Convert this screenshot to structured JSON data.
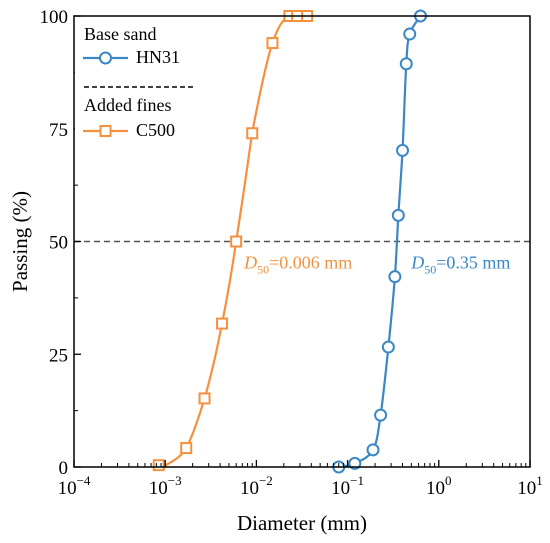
{
  "chart_data": {
    "type": "line",
    "xlabel": "Diameter (mm)",
    "ylabel": "Passing (%)",
    "x_scale": "log",
    "xlim": [
      0.0001,
      10
    ],
    "ylim": [
      0,
      100
    ],
    "x_tick_values": [
      0.0001,
      0.001,
      0.01,
      0.1,
      1,
      10
    ],
    "x_tick_labels": [
      {
        "base": "10",
        "exp": "−4"
      },
      {
        "base": "10",
        "exp": "−3"
      },
      {
        "base": "10",
        "exp": "−2"
      },
      {
        "base": "10",
        "exp": "−1"
      },
      {
        "base": "10",
        "exp": "0"
      },
      {
        "base": "10",
        "exp": "1"
      }
    ],
    "y_ticks": [
      0,
      25,
      50,
      75,
      100
    ],
    "grid": false,
    "legend_position": "top-left",
    "legend_groups": [
      {
        "header": "Base sand",
        "series_index": 0
      },
      {
        "header": "Added fines",
        "series_index": 1
      }
    ],
    "reference_line": {
      "y": 50,
      "style": "dashed",
      "color": "#555555"
    },
    "series": [
      {
        "name": "HN31",
        "color": "#3a87c5",
        "marker": "circle",
        "x": [
          0.08,
          0.12,
          0.19,
          0.23,
          0.28,
          0.33,
          0.36,
          0.4,
          0.44,
          0.48,
          0.63
        ],
        "y": [
          0,
          0.8,
          3.8,
          11.5,
          26.6,
          42.2,
          55.8,
          70.2,
          89.4,
          96.0,
          100
        ],
        "curve_x": [
          0.08,
          0.12,
          0.19,
          0.23,
          0.28,
          0.33,
          0.36,
          0.4,
          0.44,
          0.48,
          0.63
        ],
        "curve_y": [
          0,
          0.8,
          3.8,
          11.5,
          26.6,
          42.2,
          55.8,
          70.2,
          89.4,
          96.0,
          100
        ]
      },
      {
        "name": "C500",
        "color": "#f5913e",
        "marker": "square",
        "x": [
          0.00085,
          0.0017,
          0.0027,
          0.0042,
          0.006,
          0.009,
          0.015,
          0.023,
          0.028,
          0.036
        ],
        "y": [
          0.4,
          4.2,
          15.2,
          31.8,
          50.0,
          74.0,
          94.0,
          100,
          100,
          100
        ],
        "curve_x": [
          0.0009,
          0.0011,
          0.0014,
          0.0017,
          0.0021,
          0.0027,
          0.0034,
          0.0042,
          0.0051,
          0.006,
          0.0075,
          0.009,
          0.011,
          0.013,
          0.015,
          0.018,
          0.022
        ],
        "curve_y": [
          0,
          0.8,
          2.2,
          4.2,
          8.5,
          15.2,
          23.0,
          31.8,
          41.0,
          50.0,
          63.0,
          74.0,
          83.0,
          89.5,
          94.0,
          97.8,
          100
        ]
      }
    ],
    "annotations": [
      {
        "series_index": 1,
        "x": 0.006,
        "y": 50,
        "symbol": "D",
        "subscript": "50",
        "text": "=0.006 mm"
      },
      {
        "series_index": 0,
        "x": 0.35,
        "y": 50,
        "symbol": "D",
        "subscript": "50",
        "text": "=0.35 mm"
      }
    ]
  }
}
